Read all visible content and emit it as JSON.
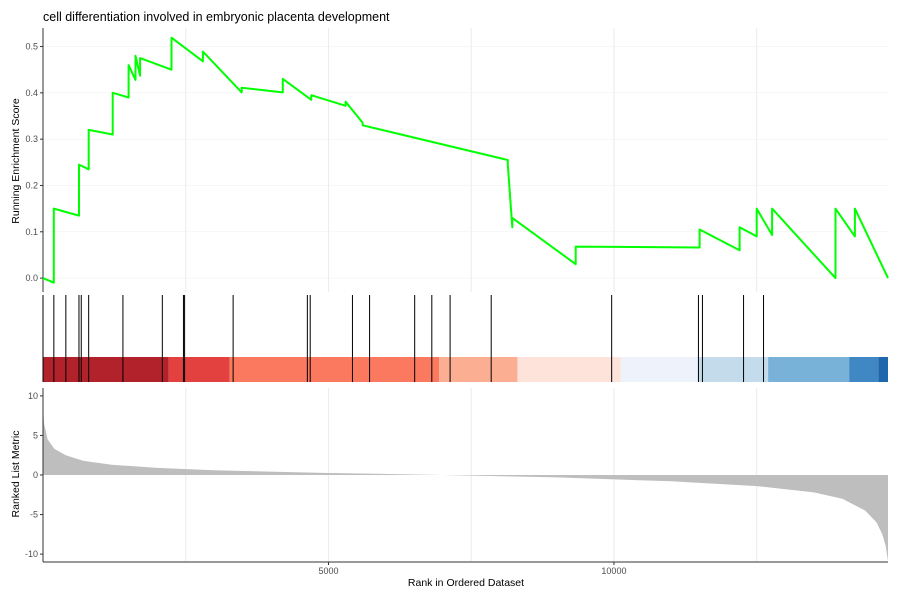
{
  "chart_data": {
    "type": "line",
    "title": "cell differentiation involved in embryonic placenta development",
    "top_panel": {
      "ylabel": "Running Enrichment Score",
      "ylim": [
        -0.03,
        0.54
      ],
      "yticks": [
        0.0,
        0.1,
        0.2,
        0.3,
        0.4,
        0.5
      ],
      "ytick_labels": [
        "0.0",
        "0.1",
        "0.2",
        "0.3",
        "0.4",
        "0.5"
      ],
      "line_color": "#00ff00",
      "series": [
        {
          "x": [
            0,
            190,
            190,
            630,
            630,
            800,
            800,
            1220,
            1220,
            1500,
            1500,
            1620,
            1620,
            1700,
            1700,
            2250,
            2250,
            2800,
            2800,
            3480,
            3480,
            4200,
            4200,
            4700,
            4700,
            5300,
            5300,
            5600,
            5600,
            8140,
            8140,
            8220,
            8220,
            9330,
            9330,
            11500,
            11500,
            12200,
            12200,
            12500,
            12500,
            12770,
            12770,
            13880,
            13880,
            14220,
            14220,
            14800
          ],
          "y": [
            0.0,
            -0.01,
            0.15,
            0.135,
            0.245,
            0.235,
            0.32,
            0.31,
            0.4,
            0.39,
            0.46,
            0.428,
            0.48,
            0.437,
            0.475,
            0.45,
            0.519,
            0.468,
            0.489,
            0.401,
            0.411,
            0.401,
            0.43,
            0.385,
            0.395,
            0.372,
            0.381,
            0.335,
            0.33,
            0.255,
            0.245,
            0.11,
            0.13,
            0.03,
            0.068,
            0.066,
            0.105,
            0.06,
            0.11,
            0.09,
            0.15,
            0.093,
            0.15,
            0.0,
            0.15,
            0.09,
            0.15,
            0.0
          ]
        }
      ]
    },
    "hits": [
      0,
      190,
      400,
      630,
      670,
      800,
      1400,
      2090,
      2460,
      2480,
      3330,
      4630,
      4680,
      5420,
      5720,
      6510,
      6810,
      7130,
      7850,
      9960,
      11480,
      11550,
      12270,
      12620
    ],
    "color_band": [
      {
        "x0": 0,
        "x1": 2200,
        "color": "#b2222b"
      },
      {
        "x0": 2200,
        "x1": 3270,
        "color": "#e34140"
      },
      {
        "x0": 3270,
        "x1": 6940,
        "color": "#fb7a5f"
      },
      {
        "x0": 6940,
        "x1": 8310,
        "color": "#fcae92"
      },
      {
        "x0": 8310,
        "x1": 10120,
        "color": "#fde3d9"
      },
      {
        "x0": 10120,
        "x1": 11470,
        "color": "#eef3fb"
      },
      {
        "x0": 11470,
        "x1": 12700,
        "color": "#c3dbea"
      },
      {
        "x0": 12700,
        "x1": 14120,
        "color": "#78b2d8"
      },
      {
        "x0": 14120,
        "x1": 14630,
        "color": "#3f88c4"
      },
      {
        "x0": 14630,
        "x1": 14800,
        "color": "#1f66ad"
      }
    ],
    "bottom_panel": {
      "ylabel": "Ranked List Metric",
      "ylim": [
        -11,
        11
      ],
      "yticks": [
        10,
        5,
        0,
        -5,
        -10
      ],
      "ytick_labels": [
        "10",
        "5",
        "0",
        "-5",
        "-10"
      ],
      "fill_color": "#bebebe",
      "x": [
        0,
        20,
        80,
        200,
        400,
        700,
        1200,
        2000,
        3000,
        5000,
        7000,
        9000,
        11000,
        12500,
        13500,
        14000,
        14400,
        14600,
        14700,
        14760,
        14800
      ],
      "y": [
        8.8,
        6.5,
        4.5,
        3.3,
        2.5,
        1.8,
        1.3,
        0.9,
        0.6,
        0.25,
        0.0,
        -0.3,
        -0.8,
        -1.4,
        -2.2,
        -3.0,
        -4.5,
        -6.0,
        -7.5,
        -9.0,
        -10.9
      ]
    },
    "xaxis": {
      "xlabel": "Rank in Ordered Dataset",
      "xlim": [
        0,
        14800
      ],
      "xticks": [
        5000,
        10000
      ],
      "xtick_labels": [
        "5000",
        "10000"
      ],
      "grid_x": [
        2500,
        5000,
        7500,
        10000,
        12500
      ]
    },
    "grid": true,
    "legend": "none"
  }
}
